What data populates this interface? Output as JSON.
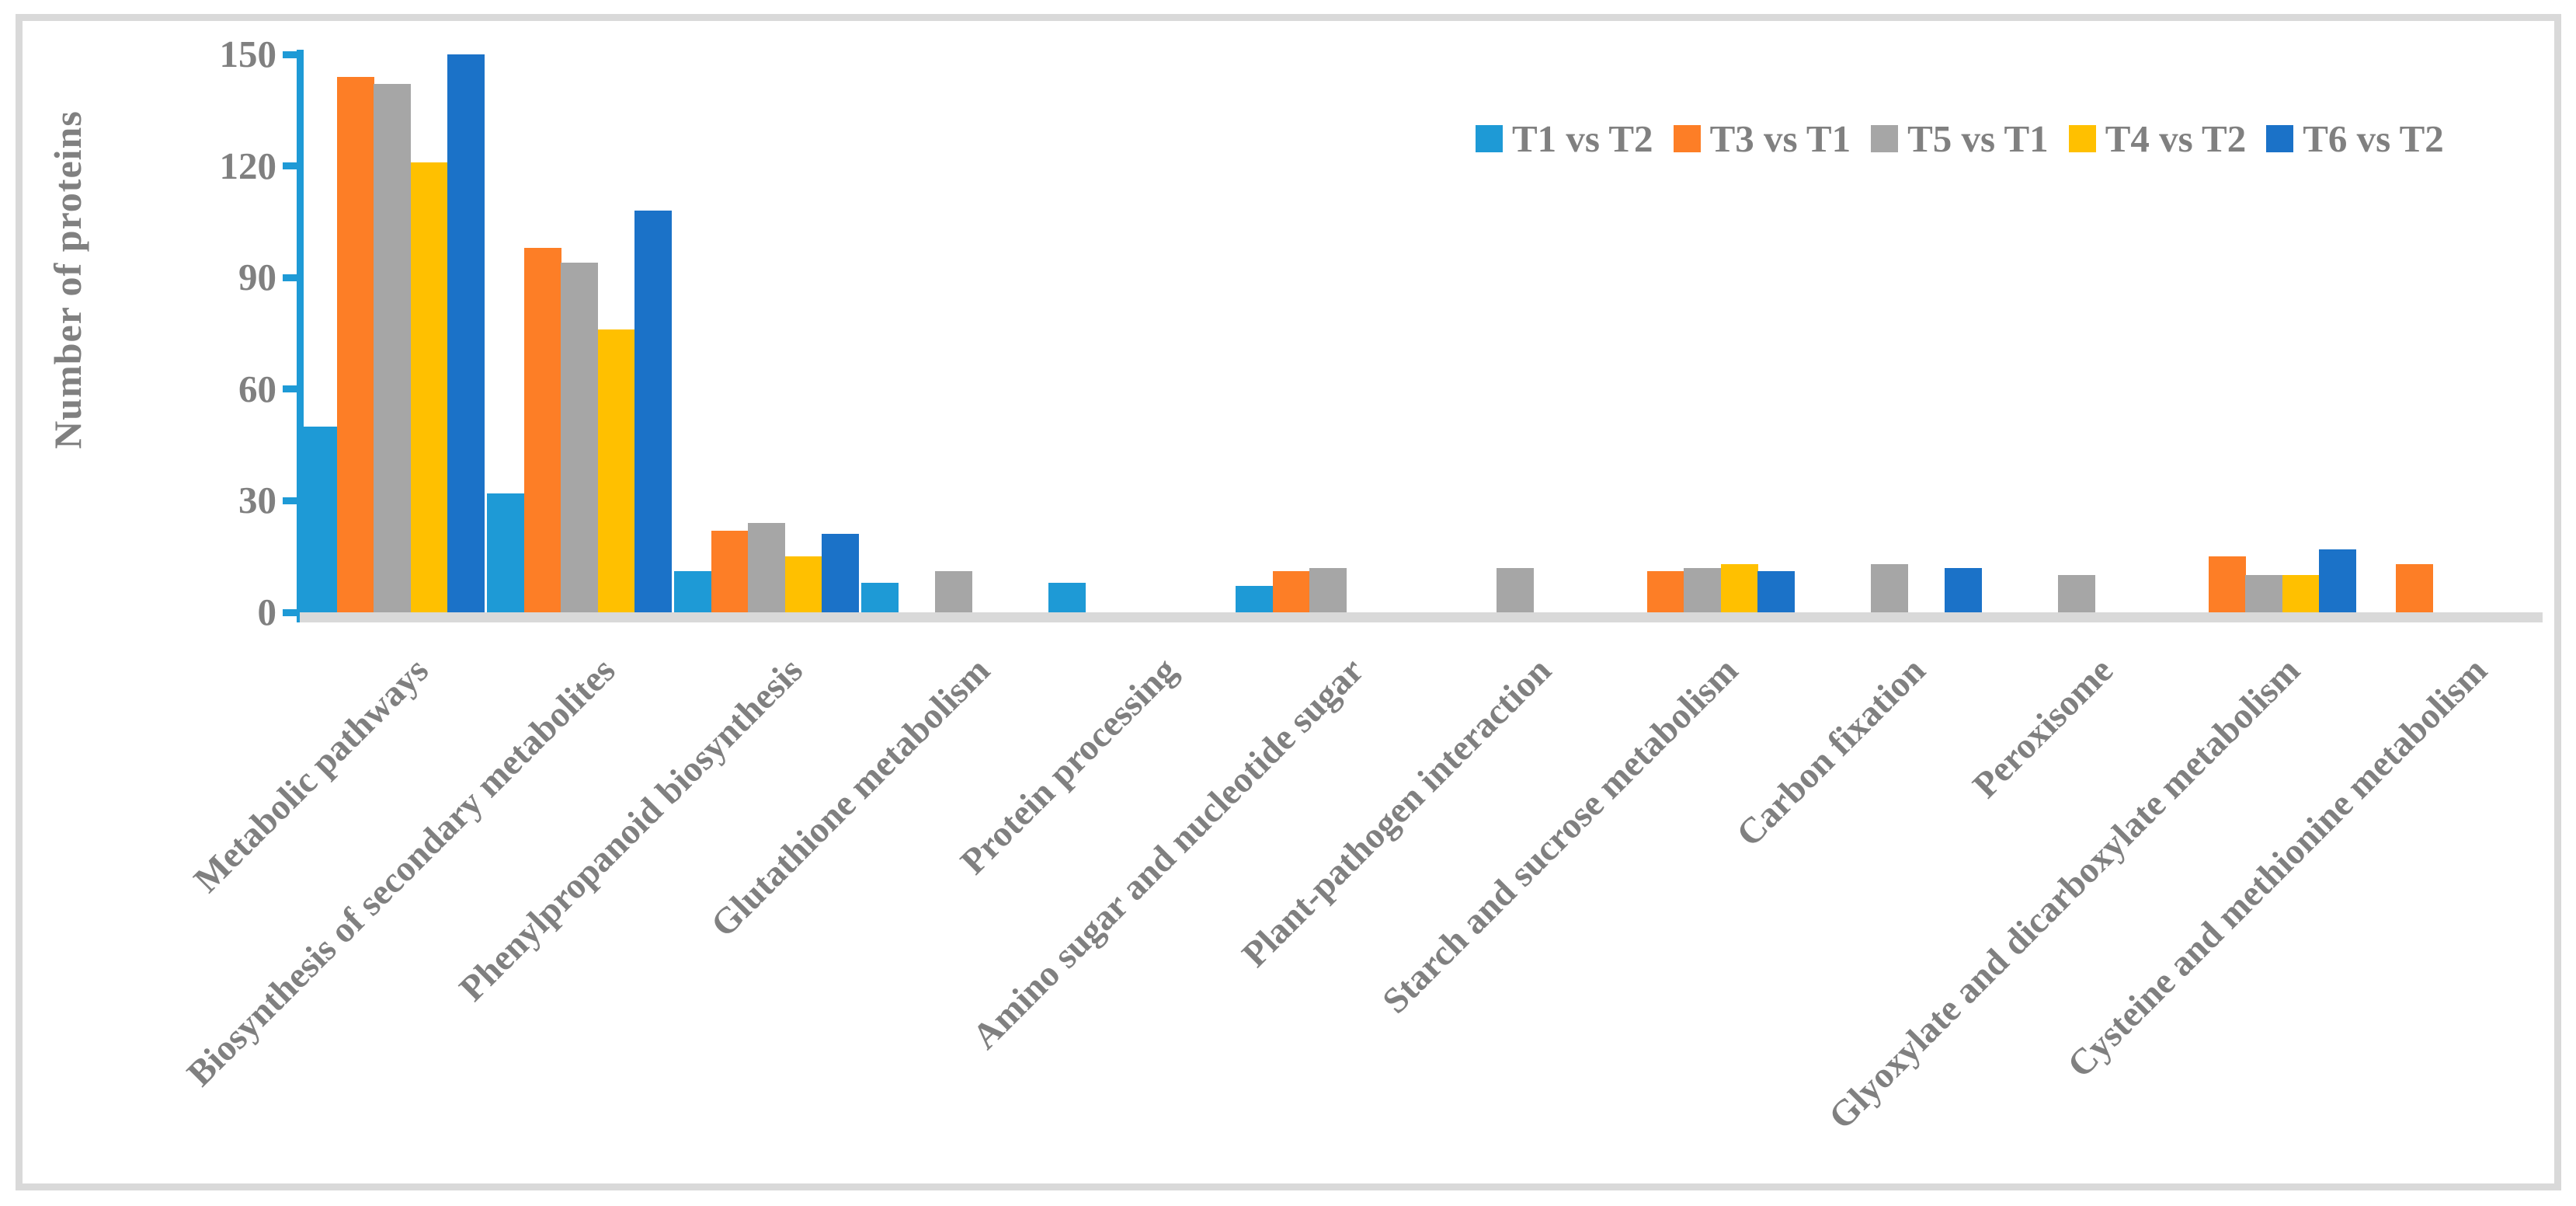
{
  "figure": {
    "background_color": "#FFFFFF",
    "frame_color": "#D9D9D9"
  },
  "axis": {
    "text_color": "#808080",
    "axis_line_color": "#1E9AD6",
    "baseline_color": "#D9D9D9"
  },
  "chart_data": {
    "type": "bar",
    "title": "",
    "xlabel": "",
    "ylabel": "Number of proteins",
    "ylim": [
      0,
      150
    ],
    "yticks": [
      0,
      30,
      60,
      90,
      120,
      150
    ],
    "grid": false,
    "legend_position": "top-right",
    "categories": [
      "Metabolic pathways",
      "Biosynthesis of secondary metabolites",
      "Phenylpropanoid biosynthesis",
      "Glutathione metabolism",
      "Protein processing",
      "Amino sugar and nucleotide sugar",
      "Plant-pathogen interaction",
      "Starch and sucrose metabolism",
      "Carbon fixation",
      "Peroxisome",
      "Glyoxylate and dicarboxylate metabolism",
      "Cysteine and methionine metabolism"
    ],
    "series": [
      {
        "name": "T1 vs T2",
        "color": "#1E9AD6",
        "values": [
          50,
          32,
          11,
          8,
          8,
          7,
          0,
          0,
          0,
          0,
          0,
          0
        ]
      },
      {
        "name": "T3 vs T1",
        "color": "#FD7E26",
        "values": [
          144,
          98,
          22,
          0,
          0,
          11,
          0,
          11,
          0,
          0,
          15,
          13
        ]
      },
      {
        "name": "T5 vs T1",
        "color": "#A6A6A6",
        "values": [
          142,
          94,
          24,
          11,
          0,
          12,
          12,
          12,
          13,
          10,
          10,
          0
        ]
      },
      {
        "name": "T4 vs T2",
        "color": "#FFC000",
        "values": [
          121,
          76,
          15,
          0,
          0,
          0,
          0,
          13,
          0,
          0,
          10,
          0
        ]
      },
      {
        "name": "T6 vs T2",
        "color": "#1B72C8",
        "values": [
          150,
          108,
          21,
          0,
          0,
          0,
          0,
          11,
          12,
          0,
          17,
          0
        ]
      }
    ]
  }
}
